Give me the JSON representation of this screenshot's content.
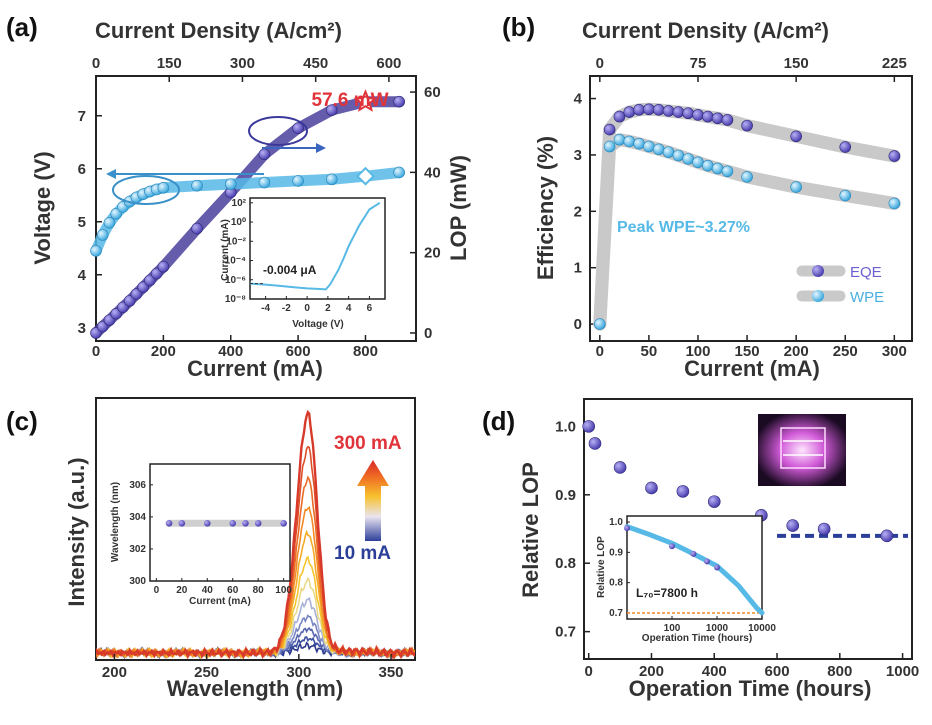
{
  "colors": {
    "purple": "#4a3f9c",
    "purple_dot": "#6a5fd0",
    "cyan": "#56b9e6",
    "cyan_dot": "#4aaee0",
    "red": "#e0343a",
    "navy": "#2b3f99",
    "grey_band": "#c9c9c9",
    "orange_dash": "#f08a2c"
  },
  "chart_data": [
    {
      "panel": "(a)",
      "type": "line",
      "top_xlabel": "Current Density (A/cm²)",
      "top_ticks": [
        "0",
        "150",
        "300",
        "450",
        "600"
      ],
      "xlabel": "Current (mA)",
      "xticks": [
        "0",
        "200",
        "400",
        "600",
        "800"
      ],
      "ylabel": "Voltage (V)",
      "yticks": [
        "3",
        "4",
        "5",
        "6",
        "7"
      ],
      "ylabel_right": "LOP (mW)",
      "yticks_right": [
        "0",
        "20",
        "40",
        "60"
      ],
      "xlim": [
        0,
        950
      ],
      "ylim": [
        2.75,
        7.75
      ],
      "ylim_right": [
        -2,
        64
      ],
      "annotation": "57.6 mW",
      "series": [
        {
          "name": "LOP",
          "axis": "right",
          "x": [
            0,
            20,
            40,
            60,
            80,
            100,
            120,
            140,
            160,
            180,
            200,
            300,
            400,
            500,
            600,
            700,
            800,
            900
          ],
          "y": [
            0,
            1.6,
            3.2,
            4.8,
            6.4,
            8,
            9.7,
            11.4,
            13.1,
            14.8,
            16.5,
            26,
            35,
            44.5,
            51,
            55.5,
            57.6,
            57.6
          ]
        },
        {
          "name": "Voltage",
          "axis": "left",
          "x": [
            0,
            20,
            40,
            60,
            80,
            100,
            120,
            140,
            160,
            180,
            200,
            300,
            400,
            500,
            600,
            700,
            800,
            900
          ],
          "y": [
            4.45,
            4.75,
            4.98,
            5.15,
            5.28,
            5.38,
            5.46,
            5.52,
            5.57,
            5.61,
            5.64,
            5.68,
            5.71,
            5.74,
            5.77,
            5.8,
            5.86,
            5.93
          ]
        }
      ],
      "inset": {
        "xlabel": "Voltage (V)",
        "ylabel": "Current (mA)",
        "xticks": [
          "-4",
          "-2",
          "0",
          "2",
          "4",
          "6"
        ],
        "yticks": [
          "10⁻⁸",
          "10⁻⁶",
          "10⁻⁴",
          "10⁻²",
          "10⁰",
          "10²"
        ],
        "annotation": "-0.004 μA",
        "xlim": [
          -5.5,
          7.5
        ],
        "ylim": [
          -8,
          2.5
        ],
        "curve": {
          "x": [
            -5.5,
            -4,
            -3,
            -2,
            -1,
            0,
            1,
            1.8,
            2.2,
            3,
            3.5,
            4,
            5,
            6,
            7
          ],
          "y": [
            -6.4,
            -6.5,
            -6.6,
            -6.7,
            -6.8,
            -6.9,
            -6.95,
            -7.0,
            -6.5,
            -5,
            -3.8,
            -2.5,
            -0.4,
            1.3,
            2.0
          ]
        }
      }
    },
    {
      "panel": "(b)",
      "type": "line",
      "top_xlabel": "Current Density (A/cm²)",
      "top_ticks": [
        "0",
        "75",
        "150",
        "225"
      ],
      "xlabel": "Current (mA)",
      "xticks": [
        "0",
        "50",
        "100",
        "150",
        "200",
        "250",
        "300"
      ],
      "ylabel": "Efficiency (%)",
      "yticks": [
        "0",
        "1",
        "2",
        "3",
        "4"
      ],
      "xlim": [
        -10,
        318
      ],
      "ylim": [
        -0.3,
        4.4
      ],
      "annotation": "Peak WPE~3.27%",
      "series": [
        {
          "name": "EQE",
          "x": [
            0,
            10,
            20,
            30,
            40,
            50,
            60,
            70,
            80,
            90,
            100,
            110,
            120,
            130,
            150,
            200,
            250,
            300
          ],
          "y": [
            0,
            3.45,
            3.68,
            3.76,
            3.8,
            3.81,
            3.8,
            3.78,
            3.76,
            3.74,
            3.71,
            3.68,
            3.65,
            3.62,
            3.52,
            3.33,
            3.14,
            2.98
          ]
        },
        {
          "name": "WPE",
          "x": [
            10,
            20,
            30,
            40,
            50,
            60,
            70,
            80,
            90,
            100,
            110,
            120,
            130,
            150,
            200,
            250,
            300
          ],
          "y": [
            3.15,
            3.27,
            3.24,
            3.2,
            3.15,
            3.1,
            3.05,
            2.99,
            2.93,
            2.87,
            2.81,
            2.76,
            2.71,
            2.61,
            2.43,
            2.28,
            2.14
          ]
        }
      ]
    },
    {
      "panel": "(c)",
      "type": "line",
      "xlabel": "Wavelength (nm)",
      "xticks": [
        "200",
        "250",
        "300",
        "350"
      ],
      "ylabel": "Intensity (a.u.)",
      "xlim": [
        190,
        363
      ],
      "ylim": [
        0,
        1.1
      ],
      "label_high": "300 mA",
      "label_low": "10 mA",
      "spectra_peak_nm": 305,
      "spectra_intensities": [
        0.03,
        0.06,
        0.1,
        0.15,
        0.22,
        0.3,
        0.39,
        0.5,
        0.61,
        0.73,
        0.86,
        1.0
      ],
      "inset": {
        "xlabel": "Current (mA)",
        "ylabel": "Wavelength (nm)",
        "xticks": [
          "0",
          "20",
          "40",
          "60",
          "80",
          "100"
        ],
        "yticks": [
          "300",
          "302",
          "304",
          "306"
        ],
        "xlim": [
          -5,
          105
        ],
        "ylim": [
          300,
          307.3
        ],
        "x": [
          10,
          20,
          40,
          60,
          70,
          80,
          100
        ],
        "y": [
          303.6,
          303.6,
          303.6,
          303.6,
          303.6,
          303.6,
          303.6
        ]
      }
    },
    {
      "panel": "(d)",
      "type": "scatter",
      "xlabel": "Operation Time (hours)",
      "xticks": [
        "0",
        "200",
        "400",
        "600",
        "800",
        "1000"
      ],
      "ylabel": "Relative LOP",
      "yticks": [
        "0.7",
        "0.8",
        "0.9",
        "1.0"
      ],
      "xlim": [
        -15,
        1030
      ],
      "ylim": [
        0.66,
        1.04
      ],
      "x": [
        0,
        20,
        100,
        200,
        300,
        400,
        550,
        650,
        750,
        950
      ],
      "y": [
        1.0,
        0.975,
        0.94,
        0.91,
        0.905,
        0.89,
        0.87,
        0.855,
        0.85,
        0.84
      ],
      "dashed_level": 0.84,
      "inset": {
        "xlabel": "Operation Time (hours)",
        "ylabel": "Relative LOP",
        "xticks": [
          "100",
          "1000",
          "10000"
        ],
        "yticks": [
          "0.7",
          "0.8",
          "0.9",
          "1.0"
        ],
        "annotation": "L₇₀=7800 h",
        "ylim": [
          0.68,
          1.02
        ],
        "points_x": [
          10,
          100,
          300,
          600,
          1000
        ],
        "points_y": [
          0.98,
          0.92,
          0.895,
          0.87,
          0.85
        ],
        "fit_x": [
          10,
          30,
          100,
          300,
          1000,
          3000,
          7800,
          10000
        ],
        "fit_y": [
          0.985,
          0.96,
          0.93,
          0.895,
          0.855,
          0.79,
          0.715,
          0.7
        ],
        "threshold": 0.7
      }
    }
  ]
}
